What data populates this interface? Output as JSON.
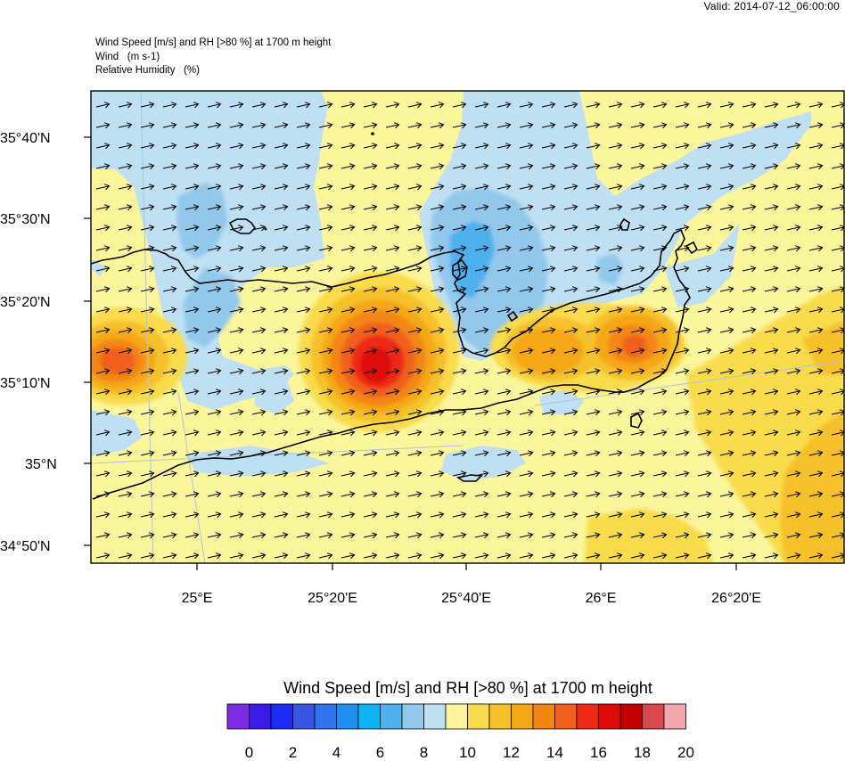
{
  "valid_label": "Valid: 2014-07-12_06:00:00",
  "header": {
    "line1": "Wind Speed [m/s] and RH [>80 %] at 1700 m height",
    "line2": "Wind   (m s-1)",
    "line3": "Relative Humidity   (%)"
  },
  "map": {
    "lat_labels": [
      "35°40'N",
      "35°30'N",
      "35°20'N",
      "35°10'N",
      "35°N",
      "34°50'N"
    ],
    "lon_labels": [
      "25°E",
      "25°20'E",
      "25°40'E",
      "26°E",
      "26°20'E"
    ],
    "lat_values": [
      35.6667,
      35.5,
      35.3333,
      35.1667,
      35.0,
      34.8333
    ],
    "lon_values": [
      25.0,
      25.3333,
      25.6667,
      26.0,
      26.3333
    ],
    "extent": {
      "lon_min": 24.74,
      "lon_max": 26.6,
      "lat_min": 34.77,
      "lat_max": 35.75
    },
    "wind_direction": "west-southwesterly, arrows point east-northeast"
  },
  "colorbar": {
    "title": "Wind Speed [m/s] and RH [>80 %] at 1700 m height",
    "tick_labels": [
      "0",
      "2",
      "4",
      "6",
      "8",
      "10",
      "12",
      "14",
      "16",
      "18",
      "20"
    ],
    "colors": [
      "#7d2be3",
      "#3a1ae8",
      "#1c2bf0",
      "#3757e2",
      "#2f74ee",
      "#1f8ff0",
      "#0eb3f5",
      "#4fb0ee",
      "#92c8eb",
      "#bfe0f3",
      "#fbf59c",
      "#f9db4b",
      "#f6c02a",
      "#f6a716",
      "#f38613",
      "#f0601a",
      "#ee2a14",
      "#de0a0a",
      "#c10000",
      "#d8474b",
      "#f2a8aa"
    ]
  }
}
